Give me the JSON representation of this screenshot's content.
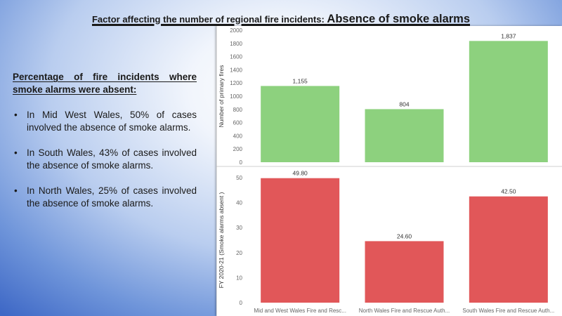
{
  "title": {
    "lead": "Factor affecting the number of regional fire incidents: ",
    "emphasis": "Absence of smoke alarms"
  },
  "summary": {
    "heading": "Percentage of fire incidents where smoke alarms were absent:",
    "bullet": "•",
    "items": [
      "In Mid West Wales, 50% of cases involved the absence of smoke alarms.",
      "In South Wales, 43% of cases involved the absence of smoke alarms.",
      "In North Wales, 25% of cases involved the absence of smoke alarms."
    ]
  },
  "chart_data": [
    {
      "type": "bar",
      "values": [
        1155,
        804,
        1837
      ],
      "value_labels": [
        "1,155",
        "804",
        "1,837"
      ],
      "ylabel": "Number of primary fires",
      "ylim": [
        0,
        2000
      ],
      "ytick_step": 200,
      "grid": false,
      "color": "#8dd17e"
    },
    {
      "type": "bar",
      "categories": [
        "Mid and West Wales Fire and Resc...",
        "North Wales Fire and Rescue Auth...",
        "South Wales Fire and Rescue Auth..."
      ],
      "values": [
        49.8,
        24.6,
        42.5
      ],
      "value_labels": [
        "49.80",
        "24.60",
        "42.50"
      ],
      "ylabel": "FY 2020-21 (Smoke alarms absent )",
      "ylim": [
        0,
        50
      ],
      "ytick_step": 10,
      "grid": false,
      "color": "#e15759"
    }
  ]
}
